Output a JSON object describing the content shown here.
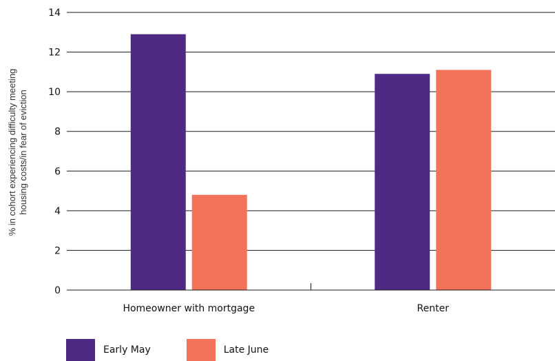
{
  "chart_data": {
    "type": "bar",
    "title": "",
    "xlabel": "",
    "ylabel_lines": [
      "% in cohort experiencing difficulty meeting",
      "housing costs/in fear of eviction"
    ],
    "categories": [
      "Homeowner with mortgage",
      "Renter"
    ],
    "series": [
      {
        "name": "Early May",
        "color": "#4f2a84",
        "values": [
          12.9,
          10.9
        ]
      },
      {
        "name": "Late June",
        "color": "#f2735a",
        "values": [
          4.8,
          11.1
        ]
      }
    ],
    "ylim": [
      0,
      14
    ],
    "yticks": [
      "0",
      "2",
      "4",
      "6",
      "8",
      "10",
      "12",
      "14"
    ],
    "grid": true,
    "legend_position": "bottom-left"
  }
}
